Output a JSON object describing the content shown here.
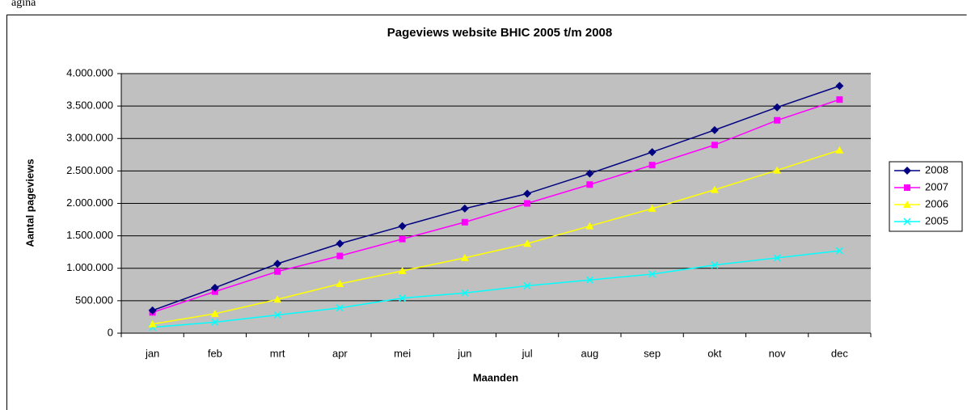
{
  "header": "agina",
  "chart_data": {
    "type": "line",
    "title": "Pageviews website BHIC 2005 t/m 2008",
    "x_label": "Maanden",
    "y_label": "Aantal pageviews",
    "categories": [
      "jan",
      "feb",
      "mrt",
      "apr",
      "mei",
      "jun",
      "jul",
      "aug",
      "sep",
      "okt",
      "nov",
      "dec"
    ],
    "series": [
      {
        "name": "2008",
        "color": "#000080",
        "marker": "diamond",
        "values": [
          350000,
          700000,
          1070000,
          1380000,
          1650000,
          1920000,
          2150000,
          2460000,
          2790000,
          3130000,
          3480000,
          3810000
        ]
      },
      {
        "name": "2007",
        "color": "#FF00FF",
        "marker": "square",
        "values": [
          320000,
          640000,
          950000,
          1190000,
          1450000,
          1710000,
          2000000,
          2290000,
          2590000,
          2900000,
          3280000,
          3600000
        ]
      },
      {
        "name": "2006",
        "color": "#FFFF00",
        "marker": "triangle",
        "values": [
          140000,
          300000,
          520000,
          760000,
          960000,
          1160000,
          1380000,
          1650000,
          1920000,
          2210000,
          2510000,
          2820000
        ]
      },
      {
        "name": "2005",
        "color": "#00FFFF",
        "marker": "x",
        "values": [
          90000,
          170000,
          280000,
          390000,
          540000,
          620000,
          730000,
          820000,
          910000,
          1050000,
          1160000,
          1270000
        ]
      }
    ],
    "ylim": [
      0,
      4000000
    ],
    "yticks": [
      0,
      {
        "value": 500000,
        "label": "500.000"
      },
      {
        "value": 1000000,
        "label": "1.000.000"
      },
      {
        "value": 1500000,
        "label": "1.500.000"
      },
      {
        "value": 2000000,
        "label": "2.000.000"
      },
      {
        "value": 2500000,
        "label": "2.500.000"
      },
      {
        "value": 3000000,
        "label": "3.000.000"
      },
      {
        "value": 3500000,
        "label": "3.500.000"
      },
      {
        "value": 4000000,
        "label": "4.000.000"
      }
    ],
    "grid": true,
    "plot_background": "#C0C0C0",
    "legend": "right"
  }
}
